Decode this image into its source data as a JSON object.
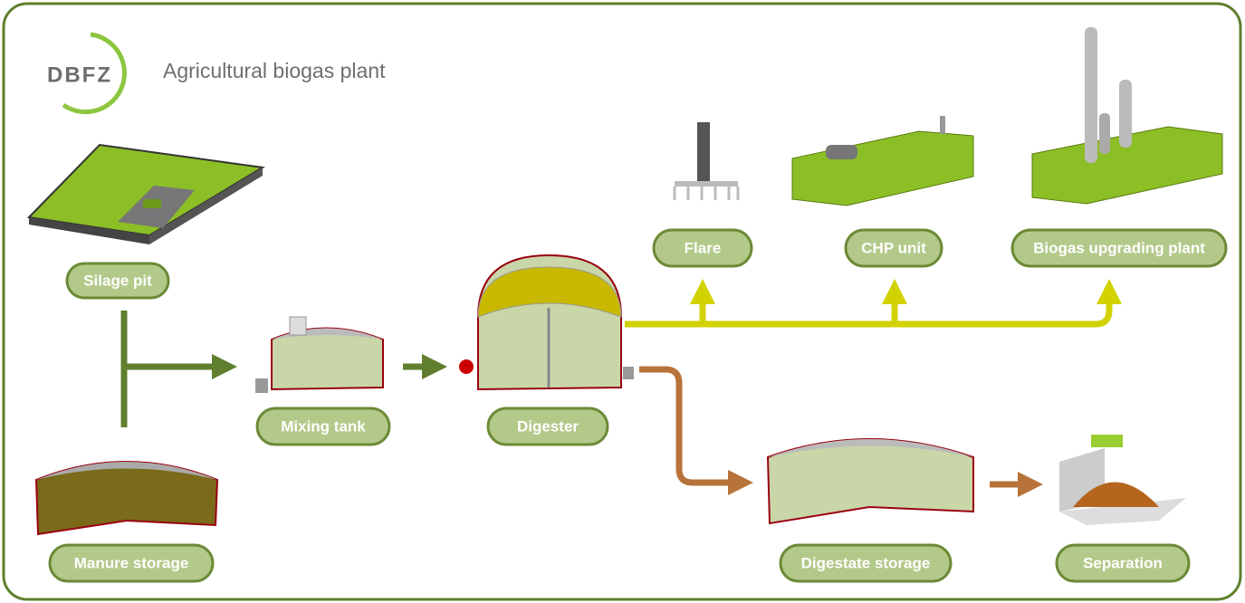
{
  "header": {
    "logo": "DBFZ",
    "title": "Agricultural biogas plant"
  },
  "nodes": [
    {
      "label": "Silage pit"
    },
    {
      "label": "Manure storage"
    },
    {
      "label": "Mixing tank"
    },
    {
      "label": "Digester"
    },
    {
      "label": "Flare"
    },
    {
      "label": "CHP unit"
    },
    {
      "label": "Biogas upgrading plant"
    },
    {
      "label": "Digestate storage"
    },
    {
      "label": "Separation"
    }
  ]
}
